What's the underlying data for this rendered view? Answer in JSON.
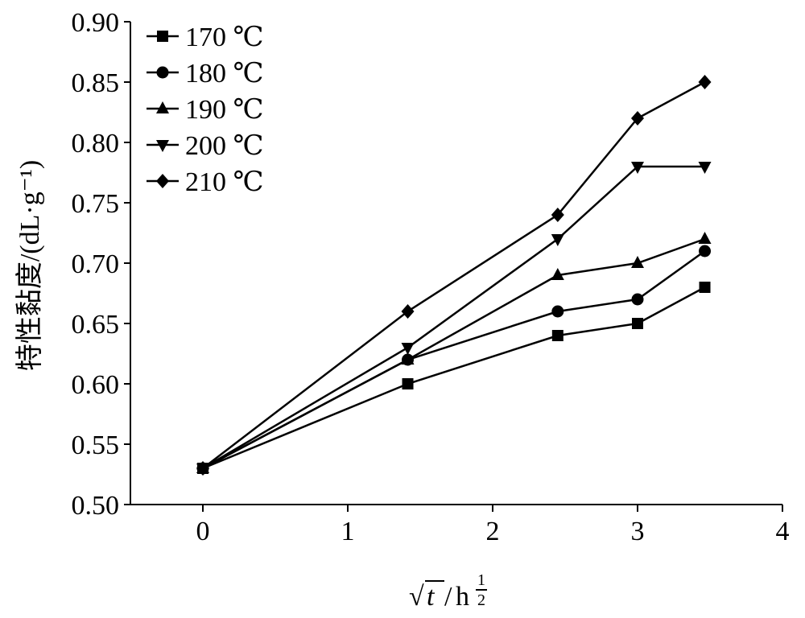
{
  "chart_data": {
    "type": "line",
    "title": "",
    "xlabel": "√t / h^(1/2)",
    "xlabel_parts": {
      "sqrt": "√",
      "var": "t",
      "slash": "/",
      "unit": "h",
      "exp_num": "1",
      "exp_den": "2"
    },
    "ylabel": "特性黏度/(dL·g⁻¹)",
    "xlim": [
      -0.5,
      4
    ],
    "ylim": [
      0.5,
      0.9
    ],
    "xticks": [
      0,
      1,
      2,
      3,
      4
    ],
    "xtick_labels": [
      "0",
      "1",
      "2",
      "3",
      "4"
    ],
    "yticks": [
      0.5,
      0.55,
      0.6,
      0.65,
      0.7,
      0.75,
      0.8,
      0.85,
      0.9
    ],
    "ytick_labels": [
      "0.50",
      "0.55",
      "0.60",
      "0.65",
      "0.70",
      "0.75",
      "0.80",
      "0.85",
      "0.90"
    ],
    "grid": false,
    "legend_position": "top-left",
    "x": [
      0,
      1.414,
      2.449,
      3.0,
      3.464
    ],
    "series": [
      {
        "name": "170 ℃",
        "marker": "square",
        "values": [
          0.53,
          0.6,
          0.64,
          0.65,
          0.68
        ]
      },
      {
        "name": "180 ℃",
        "marker": "circle",
        "values": [
          0.53,
          0.62,
          0.66,
          0.67,
          0.71
        ]
      },
      {
        "name": "190 ℃",
        "marker": "triangle-up",
        "values": [
          0.53,
          0.62,
          0.69,
          0.7,
          0.72
        ]
      },
      {
        "name": "200 ℃",
        "marker": "triangle-down",
        "values": [
          0.53,
          0.63,
          0.72,
          0.78,
          0.78
        ]
      },
      {
        "name": "210 ℃",
        "marker": "diamond",
        "values": [
          0.53,
          0.66,
          0.74,
          0.82,
          0.85
        ]
      }
    ]
  }
}
